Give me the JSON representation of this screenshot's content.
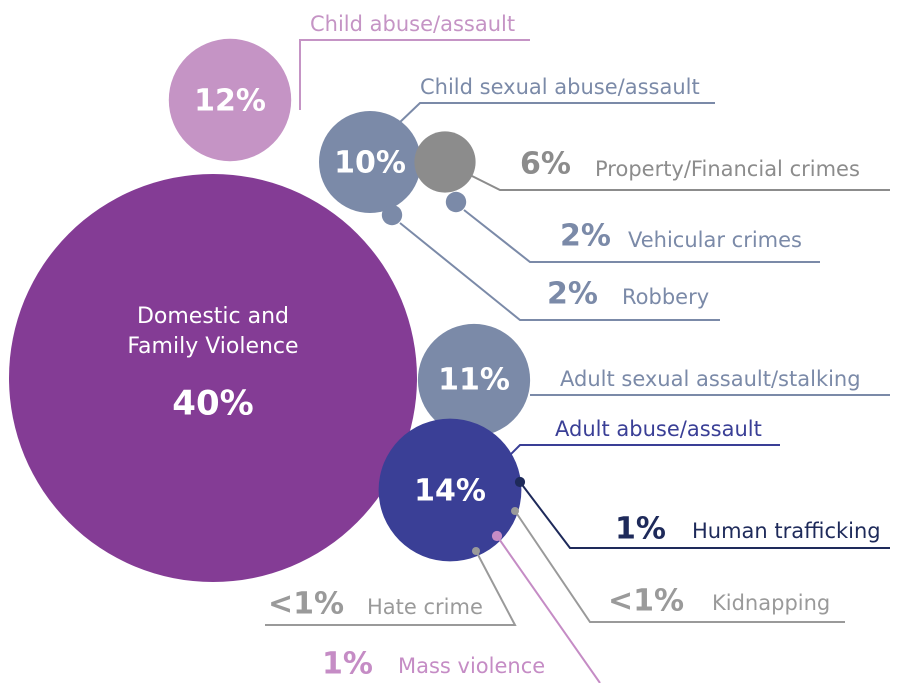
{
  "chart_data": {
    "type": "bubble",
    "categories": [
      "Domestic and Family Violence",
      "Child abuse/assault",
      "Child sexual abuse/assault",
      "Property/Financial crimes",
      "Vehicular crimes",
      "Robbery",
      "Adult sexual assault/stalking",
      "Adult abuse/assault",
      "Human trafficking",
      "Kidnapping",
      "Mass violence",
      "Hate crime"
    ],
    "values": [
      40,
      12,
      10,
      6,
      2,
      2,
      11,
      14,
      1,
      0.5,
      1,
      0.5
    ],
    "value_labels": [
      "40%",
      "12%",
      "10%",
      "6%",
      "2%",
      "2%",
      "11%",
      "14%",
      "1%",
      "<1%",
      "1%",
      "<1%"
    ],
    "colors": [
      "#843c95",
      "#c594c5",
      "#7b8aa8",
      "#8c8c8c",
      "#7b8aa8",
      "#7b8aa8",
      "#7b8aa8",
      "#3a3f96",
      "#1e2a5a",
      "#9a9a9a",
      "#c58cc5",
      "#9a9a9a"
    ]
  }
}
